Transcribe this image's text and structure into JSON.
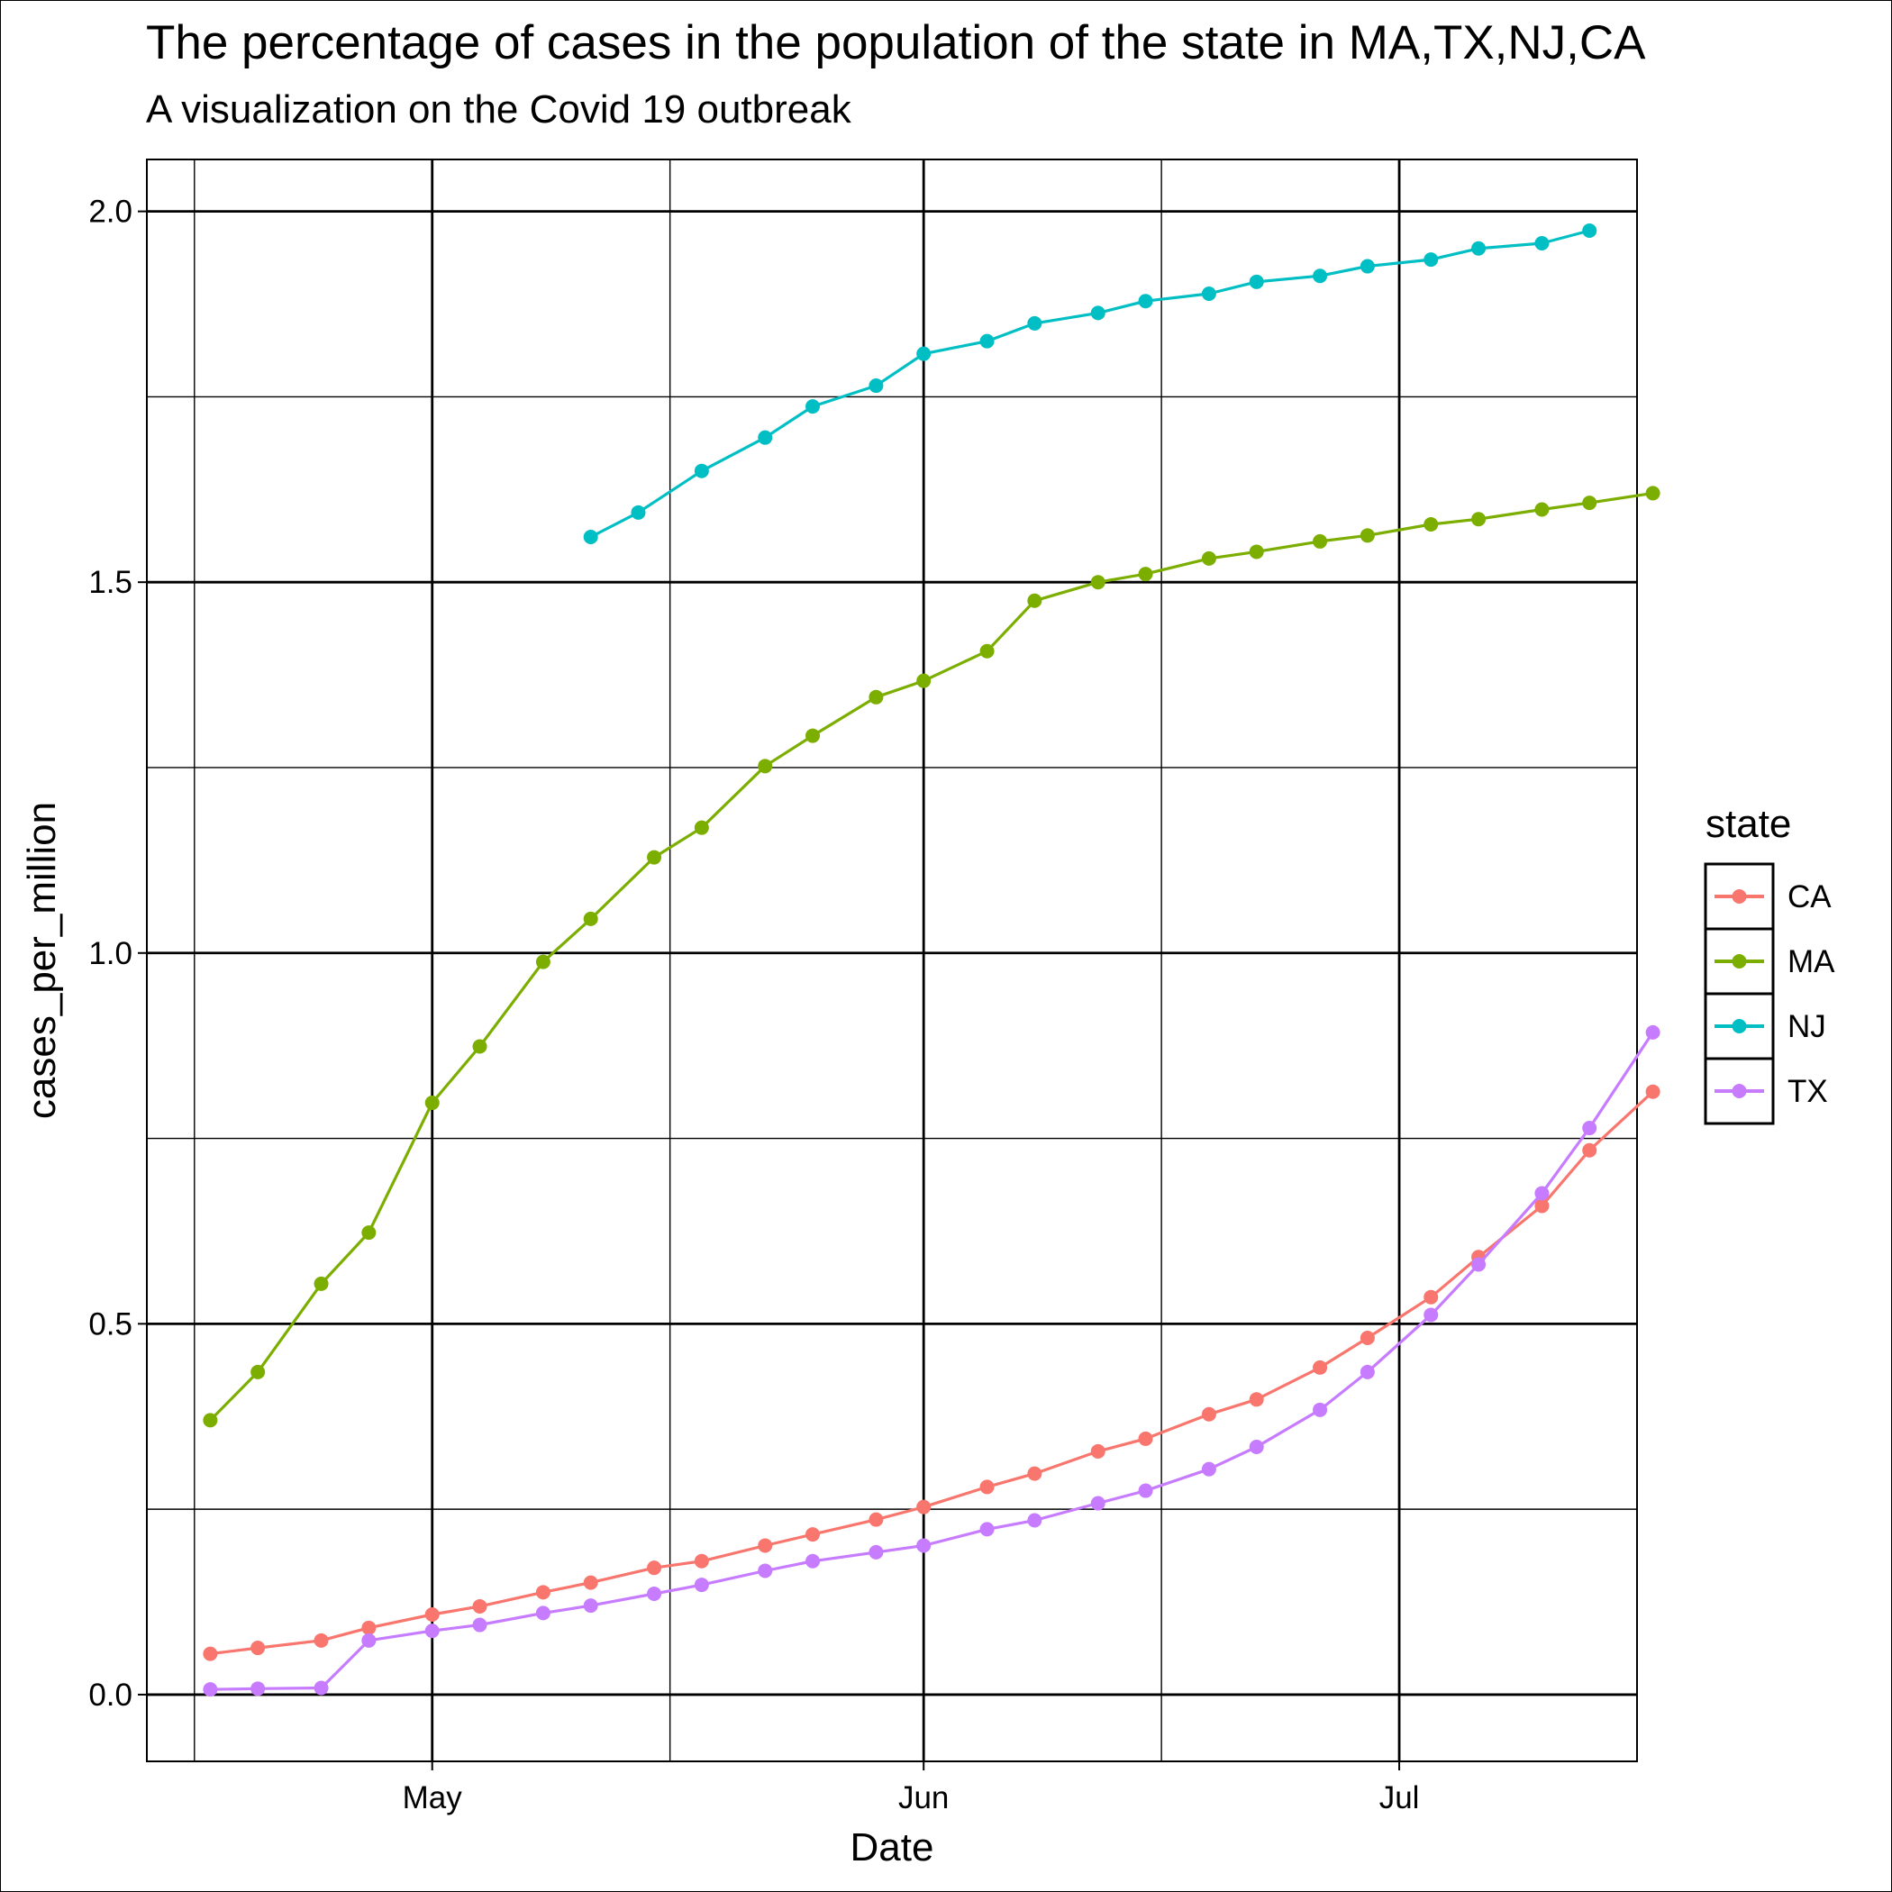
{
  "chart_data": {
    "type": "line",
    "title": "The percentage of cases in the population of the state in MA,TX,NJ,CA",
    "subtitle": "A visualization on the Covid 19 outbreak",
    "xlabel": "Date",
    "ylabel": "cases_per_million",
    "x_ticks": [
      "May",
      "Jun",
      "Jul"
    ],
    "y_ticks": [
      "0.0",
      "0.5",
      "1.0",
      "1.5",
      "2.0"
    ],
    "ylim": [
      -0.09,
      2.07
    ],
    "xlim": [
      "2020-04-13",
      "2020-07-16"
    ],
    "grid": true,
    "legend": {
      "title": "state",
      "position": "right"
    },
    "series": [
      {
        "name": "CA",
        "color": "#F8766D",
        "points": [
          [
            "2020-04-17",
            0.055
          ],
          [
            "2020-04-20",
            0.063
          ],
          [
            "2020-04-24",
            0.073
          ],
          [
            "2020-04-27",
            0.09
          ],
          [
            "2020-05-01",
            0.108
          ],
          [
            "2020-05-04",
            0.119
          ],
          [
            "2020-05-08",
            0.138
          ],
          [
            "2020-05-11",
            0.151
          ],
          [
            "2020-05-15",
            0.171
          ],
          [
            "2020-05-18",
            0.18
          ],
          [
            "2020-05-22",
            0.201
          ],
          [
            "2020-05-25",
            0.216
          ],
          [
            "2020-05-29",
            0.236
          ],
          [
            "2020-06-01",
            0.253
          ],
          [
            "2020-06-05",
            0.28
          ],
          [
            "2020-06-08",
            0.298
          ],
          [
            "2020-06-12",
            0.328
          ],
          [
            "2020-06-15",
            0.345
          ],
          [
            "2020-06-19",
            0.378
          ],
          [
            "2020-06-22",
            0.398
          ],
          [
            "2020-06-26",
            0.441
          ],
          [
            "2020-06-29",
            0.481
          ],
          [
            "2020-07-03",
            0.536
          ],
          [
            "2020-07-06",
            0.59
          ],
          [
            "2020-07-10",
            0.659
          ],
          [
            "2020-07-13",
            0.734
          ],
          [
            "2020-07-17",
            0.813
          ]
        ]
      },
      {
        "name": "MA",
        "color": "#7CAE00",
        "points": [
          [
            "2020-04-17",
            0.37
          ],
          [
            "2020-04-20",
            0.435
          ],
          [
            "2020-04-24",
            0.554
          ],
          [
            "2020-04-27",
            0.623
          ],
          [
            "2020-05-01",
            0.798
          ],
          [
            "2020-05-04",
            0.874
          ],
          [
            "2020-05-08",
            0.988
          ],
          [
            "2020-05-11",
            1.046
          ],
          [
            "2020-05-15",
            1.129
          ],
          [
            "2020-05-18",
            1.169
          ],
          [
            "2020-05-22",
            1.252
          ],
          [
            "2020-05-25",
            1.293
          ],
          [
            "2020-05-29",
            1.345
          ],
          [
            "2020-06-01",
            1.367
          ],
          [
            "2020-06-05",
            1.407
          ],
          [
            "2020-06-08",
            1.475
          ],
          [
            "2020-06-12",
            1.5
          ],
          [
            "2020-06-15",
            1.511
          ],
          [
            "2020-06-19",
            1.532
          ],
          [
            "2020-06-22",
            1.541
          ],
          [
            "2020-06-26",
            1.555
          ],
          [
            "2020-06-29",
            1.563
          ],
          [
            "2020-07-03",
            1.578
          ],
          [
            "2020-07-06",
            1.585
          ],
          [
            "2020-07-10",
            1.598
          ],
          [
            "2020-07-13",
            1.607
          ],
          [
            "2020-07-17",
            1.62
          ]
        ]
      },
      {
        "name": "NJ",
        "color": "#00BFC4",
        "points": [
          [
            "2020-05-11",
            1.561
          ],
          [
            "2020-05-14",
            1.594
          ],
          [
            "2020-05-18",
            1.65
          ],
          [
            "2020-05-22",
            1.695
          ],
          [
            "2020-05-25",
            1.737
          ],
          [
            "2020-05-29",
            1.765
          ],
          [
            "2020-06-01",
            1.808
          ],
          [
            "2020-06-05",
            1.825
          ],
          [
            "2020-06-08",
            1.849
          ],
          [
            "2020-06-12",
            1.863
          ],
          [
            "2020-06-15",
            1.879
          ],
          [
            "2020-06-19",
            1.889
          ],
          [
            "2020-06-22",
            1.905
          ],
          [
            "2020-06-26",
            1.913
          ],
          [
            "2020-06-29",
            1.926
          ],
          [
            "2020-07-03",
            1.935
          ],
          [
            "2020-07-06",
            1.95
          ],
          [
            "2020-07-10",
            1.957
          ],
          [
            "2020-07-13",
            1.974
          ]
        ]
      },
      {
        "name": "TX",
        "color": "#C77CFF",
        "points": [
          [
            "2020-04-17",
            0.007
          ],
          [
            "2020-04-20",
            0.008
          ],
          [
            "2020-04-24",
            0.009
          ],
          [
            "2020-04-27",
            0.073
          ],
          [
            "2020-05-01",
            0.086
          ],
          [
            "2020-05-04",
            0.094
          ],
          [
            "2020-05-08",
            0.11
          ],
          [
            "2020-05-11",
            0.12
          ],
          [
            "2020-05-15",
            0.136
          ],
          [
            "2020-05-18",
            0.148
          ],
          [
            "2020-05-22",
            0.167
          ],
          [
            "2020-05-25",
            0.18
          ],
          [
            "2020-05-29",
            0.192
          ],
          [
            "2020-06-01",
            0.201
          ],
          [
            "2020-06-05",
            0.223
          ],
          [
            "2020-06-08",
            0.235
          ],
          [
            "2020-06-12",
            0.258
          ],
          [
            "2020-06-15",
            0.275
          ],
          [
            "2020-06-19",
            0.304
          ],
          [
            "2020-06-22",
            0.334
          ],
          [
            "2020-06-26",
            0.384
          ],
          [
            "2020-06-29",
            0.435
          ],
          [
            "2020-07-03",
            0.512
          ],
          [
            "2020-07-06",
            0.58
          ],
          [
            "2020-07-10",
            0.676
          ],
          [
            "2020-07-13",
            0.764
          ],
          [
            "2020-07-17",
            0.893
          ]
        ]
      }
    ]
  }
}
